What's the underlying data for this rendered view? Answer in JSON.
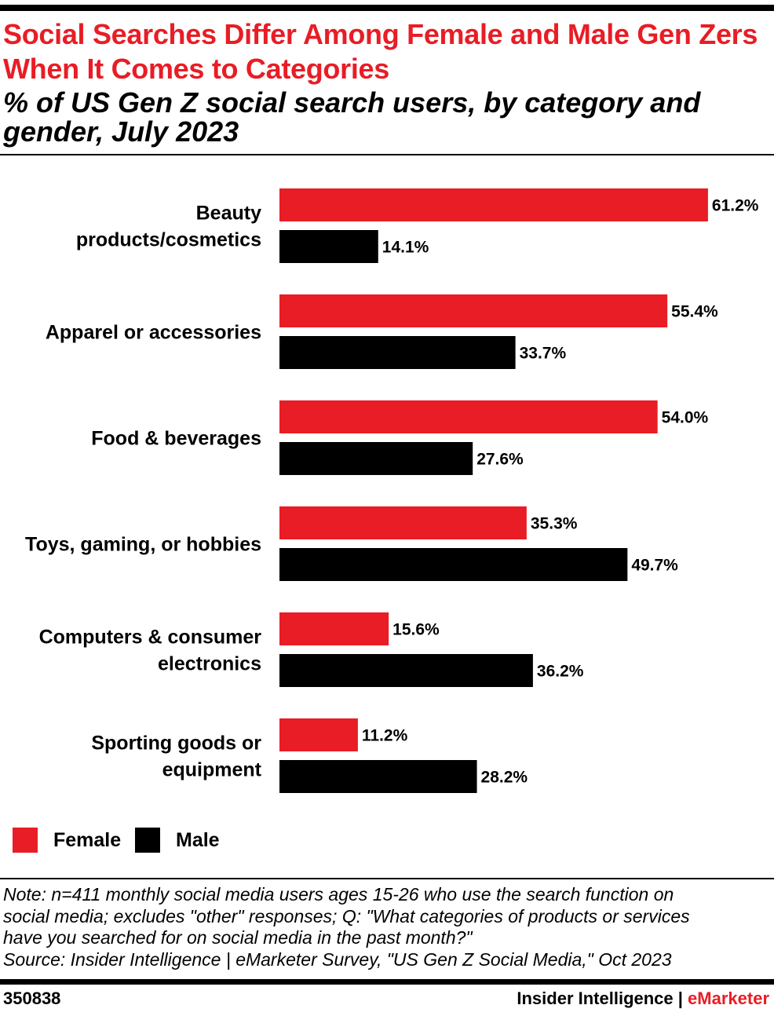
{
  "header": {
    "title": "Social Searches Differ Among Female and Male Gen Zers When It Comes to Categories",
    "subtitle": "% of US Gen Z social search users, by category and gender, July 2023"
  },
  "chart_data": {
    "type": "bar",
    "orientation": "horizontal",
    "categories": [
      [
        "Beauty",
        "products/cosmetics"
      ],
      [
        "Apparel or accessories"
      ],
      [
        "Food & beverages"
      ],
      [
        "Toys, gaming, or hobbies"
      ],
      [
        "Computers & consumer",
        "electronics"
      ],
      [
        "Sporting goods or",
        "equipment"
      ]
    ],
    "series": [
      {
        "name": "Female",
        "color": "#e81d25",
        "values": [
          61.2,
          55.4,
          54.0,
          35.3,
          15.6,
          11.2
        ],
        "labels": [
          "61.2%",
          "55.4%",
          "54.0%",
          "35.3%",
          "15.6%",
          "11.2%"
        ]
      },
      {
        "name": "Male",
        "color": "#000000",
        "values": [
          14.1,
          33.7,
          27.6,
          49.7,
          36.2,
          28.2
        ],
        "labels": [
          "14.1%",
          "33.7%",
          "27.6%",
          "49.7%",
          "36.2%",
          "28.2%"
        ]
      }
    ],
    "xlim": [
      0,
      100
    ],
    "grid": false,
    "legend_position": "bottom-left"
  },
  "legend": {
    "female": "Female",
    "male": "Male"
  },
  "note": {
    "line1": "Note: n=411 monthly social media users ages 15-26 who use the search function on",
    "line2": "social media; excludes \"other\" responses; Q: \"What categories of products or services",
    "line3": "have you searched for on social media in the past month?\"",
    "source": "Source: Insider Intelligence | eMarketer Survey, \"US Gen Z Social Media,\" Oct 2023"
  },
  "footer": {
    "chart_id": "350838",
    "brand_main": "Insider Intelligence | ",
    "brand_accent": "eMarketer"
  }
}
